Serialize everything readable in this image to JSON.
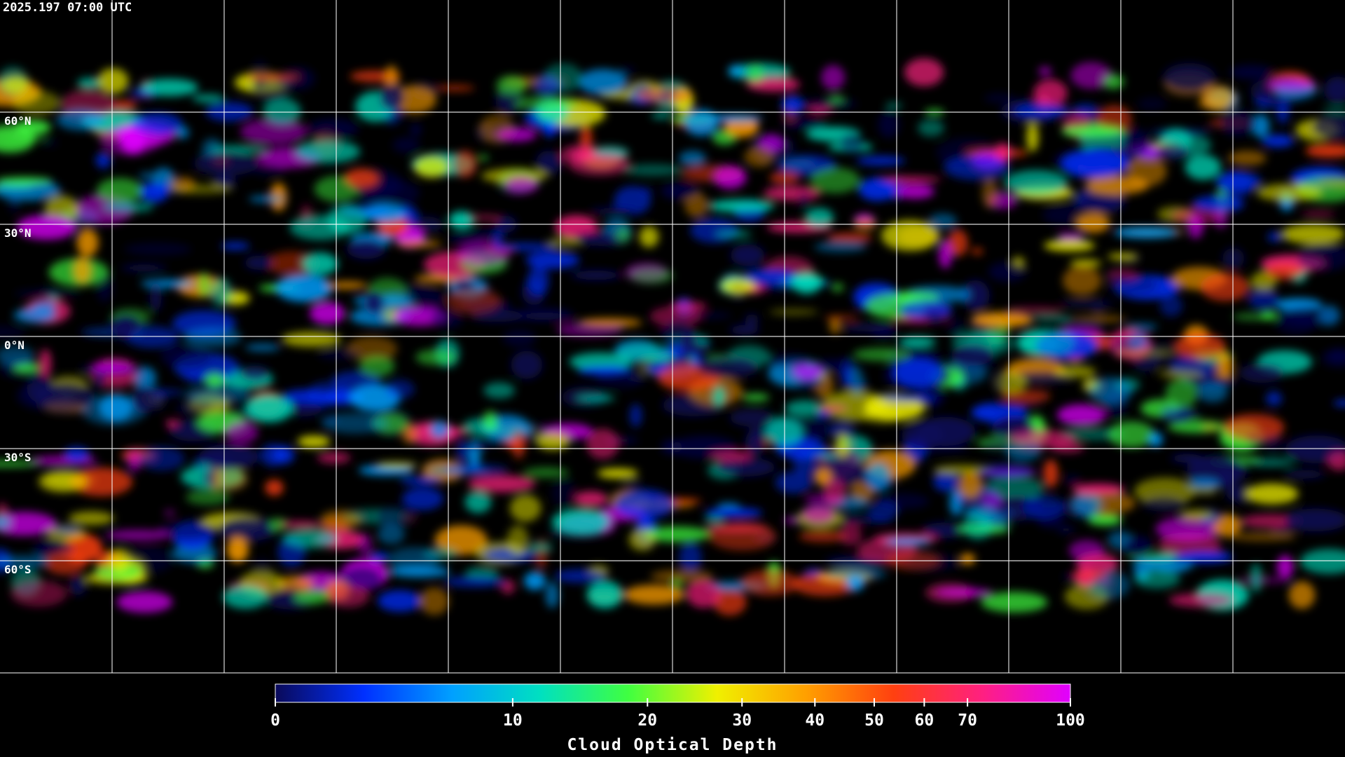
{
  "header": {
    "timestamp": "2025.197 07:00 UTC"
  },
  "map": {
    "latitude_labels": [
      "60°N",
      "30°N",
      "0°N",
      "30°S",
      "60°S"
    ]
  },
  "colorbar": {
    "title": "Cloud Optical Depth",
    "ticks": [
      0,
      10,
      20,
      30,
      40,
      50,
      60,
      70,
      100
    ],
    "lim": [
      0,
      100
    ],
    "scale": "log1p",
    "colors": [
      "#0a0a5a",
      "#0030ff",
      "#00a0ff",
      "#00e0c0",
      "#40ff40",
      "#f0f000",
      "#ffa000",
      "#ff4010",
      "#ff2080",
      "#e000ff"
    ]
  }
}
